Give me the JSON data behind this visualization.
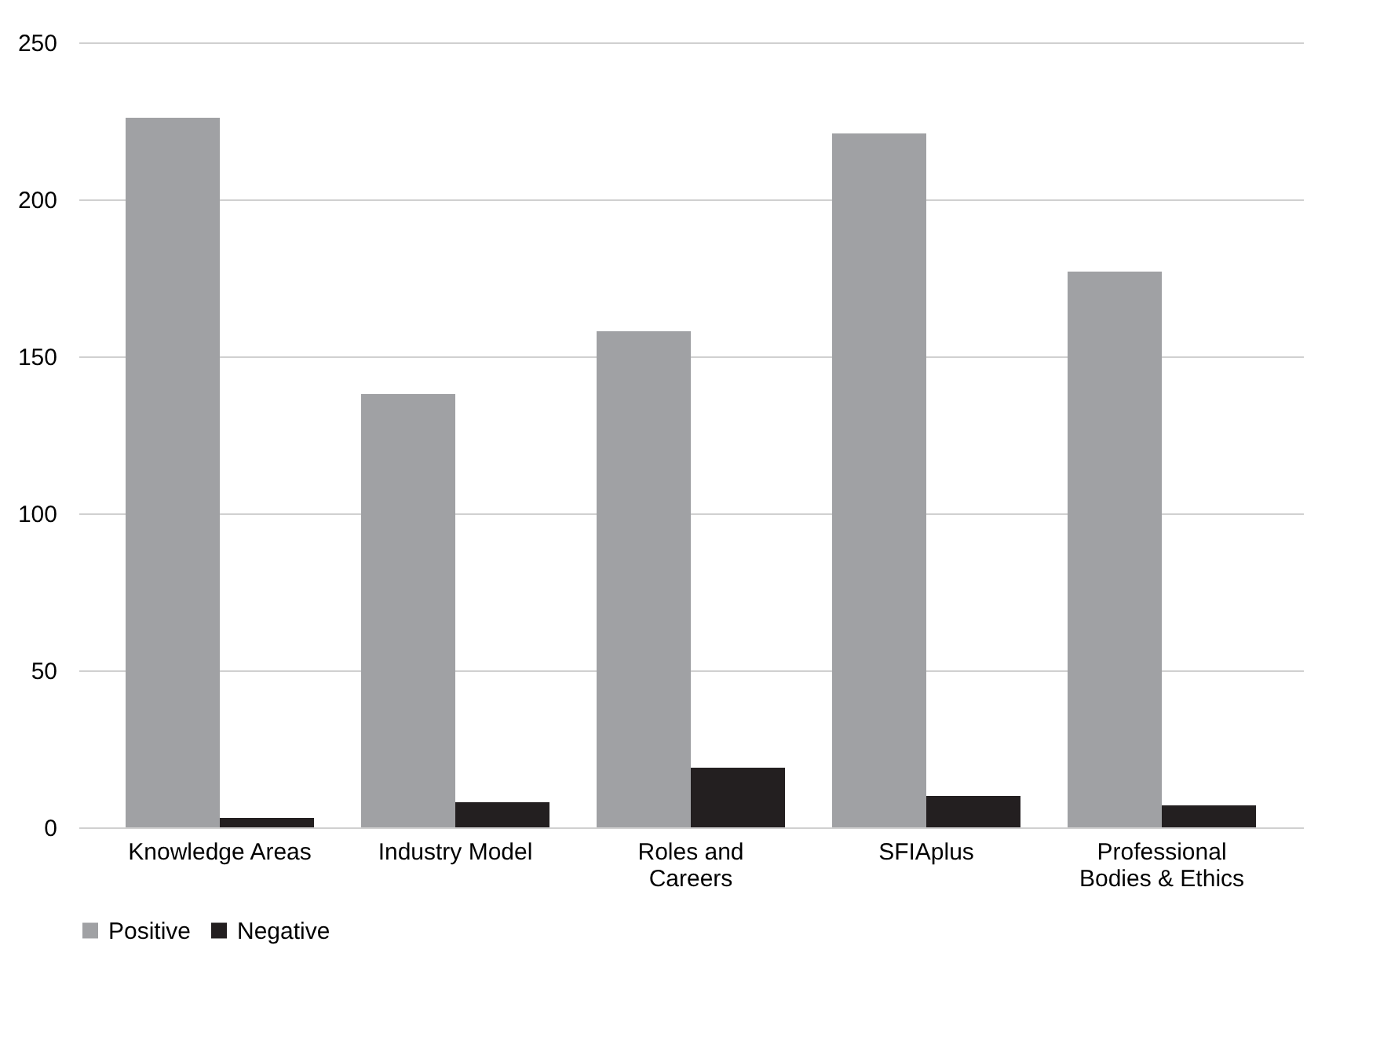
{
  "chart_data": {
    "type": "bar",
    "categories": [
      "Knowledge Areas",
      "Industry Model",
      "Roles and Careers",
      "SFIAplus",
      "Professional Bodies & Ethics"
    ],
    "series": [
      {
        "name": "Positive",
        "color": "#a0a1a4",
        "values": [
          226,
          138,
          158,
          221,
          177
        ]
      },
      {
        "name": "Negative",
        "color": "#231f20",
        "values": [
          3,
          8,
          19,
          10,
          7
        ]
      }
    ],
    "ylim": [
      0,
      250
    ],
    "yticks": [
      0,
      50,
      100,
      150,
      200,
      250
    ],
    "grid": "y",
    "legend": "bottom"
  }
}
